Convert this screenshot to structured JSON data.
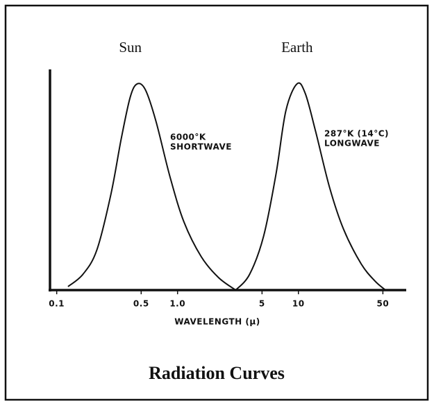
{
  "chart_data": {
    "type": "line",
    "title": "Radiation Curves",
    "xlabel": "WAVELENGTH (μ)",
    "xscale": "log",
    "xlim": [
      0.088,
      78
    ],
    "ylim": [
      0,
      1.07
    ],
    "xticks": [
      0.1,
      0.5,
      {
        "value": 1,
        "label": "1.0"
      },
      5,
      10,
      50
    ],
    "grid": false,
    "series": [
      {
        "name": "Sun",
        "color": "#111111",
        "x": [
          0.124,
          0.165,
          0.215,
          0.281,
          0.342,
          0.406,
          0.464,
          0.543,
          0.663,
          0.866,
          1.13,
          1.57,
          2.18,
          3.03
        ],
        "values": [
          0.017,
          0.077,
          0.195,
          0.465,
          0.734,
          0.936,
          1.0,
          0.97,
          0.818,
          0.549,
          0.33,
          0.162,
          0.061,
          0
        ]
      },
      {
        "name": "Earth",
        "color": "#111111",
        "x": [
          3.03,
          3.95,
          5.16,
          6.54,
          7.87,
          9.75,
          11.4,
          13.9,
          18.1,
          23.6,
          33.0,
          43.0,
          52.6
        ],
        "values": [
          0,
          0.077,
          0.263,
          0.566,
          0.869,
          1.0,
          0.953,
          0.768,
          0.498,
          0.296,
          0.128,
          0.044,
          0
        ]
      }
    ],
    "annotations": [
      {
        "lines": [
          "6000°K",
          "SHORTWAVE"
        ]
      },
      {
        "lines": [
          "287°K (14°C)",
          "LONGWAVE"
        ]
      }
    ]
  }
}
